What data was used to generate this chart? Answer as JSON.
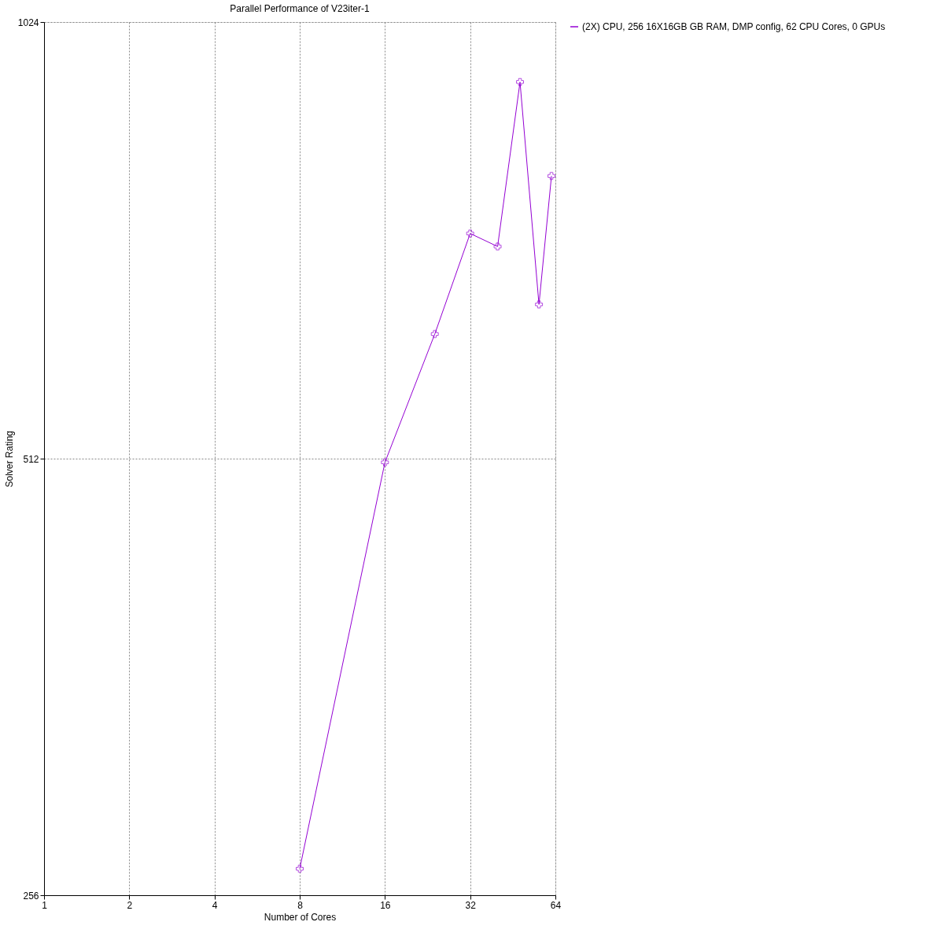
{
  "chart_data": {
    "type": "line",
    "title": "Parallel Performance of V23iter-1",
    "xlabel": "Number of Cores",
    "ylabel": "Solver Rating",
    "x": [
      8,
      16,
      24,
      32,
      40,
      48,
      56,
      62
    ],
    "series": [
      {
        "name": "(2X) CPU, 256 16X16GB GB RAM, DMP config, 62 CPU Cores, 0 GPUs",
        "color": "#9400d3",
        "values": [
          267,
          509,
          624,
          732,
          717,
          931,
          654,
          802
        ]
      }
    ],
    "xlim": [
      1,
      64
    ],
    "xticks": [
      1,
      2,
      4,
      8,
      16,
      32,
      64
    ],
    "ylim": [
      256,
      1024
    ],
    "yticks": [
      256,
      512,
      1024
    ],
    "log": "xy",
    "grid": true,
    "legend": "right",
    "marker": "cross",
    "line_style": "solid"
  }
}
